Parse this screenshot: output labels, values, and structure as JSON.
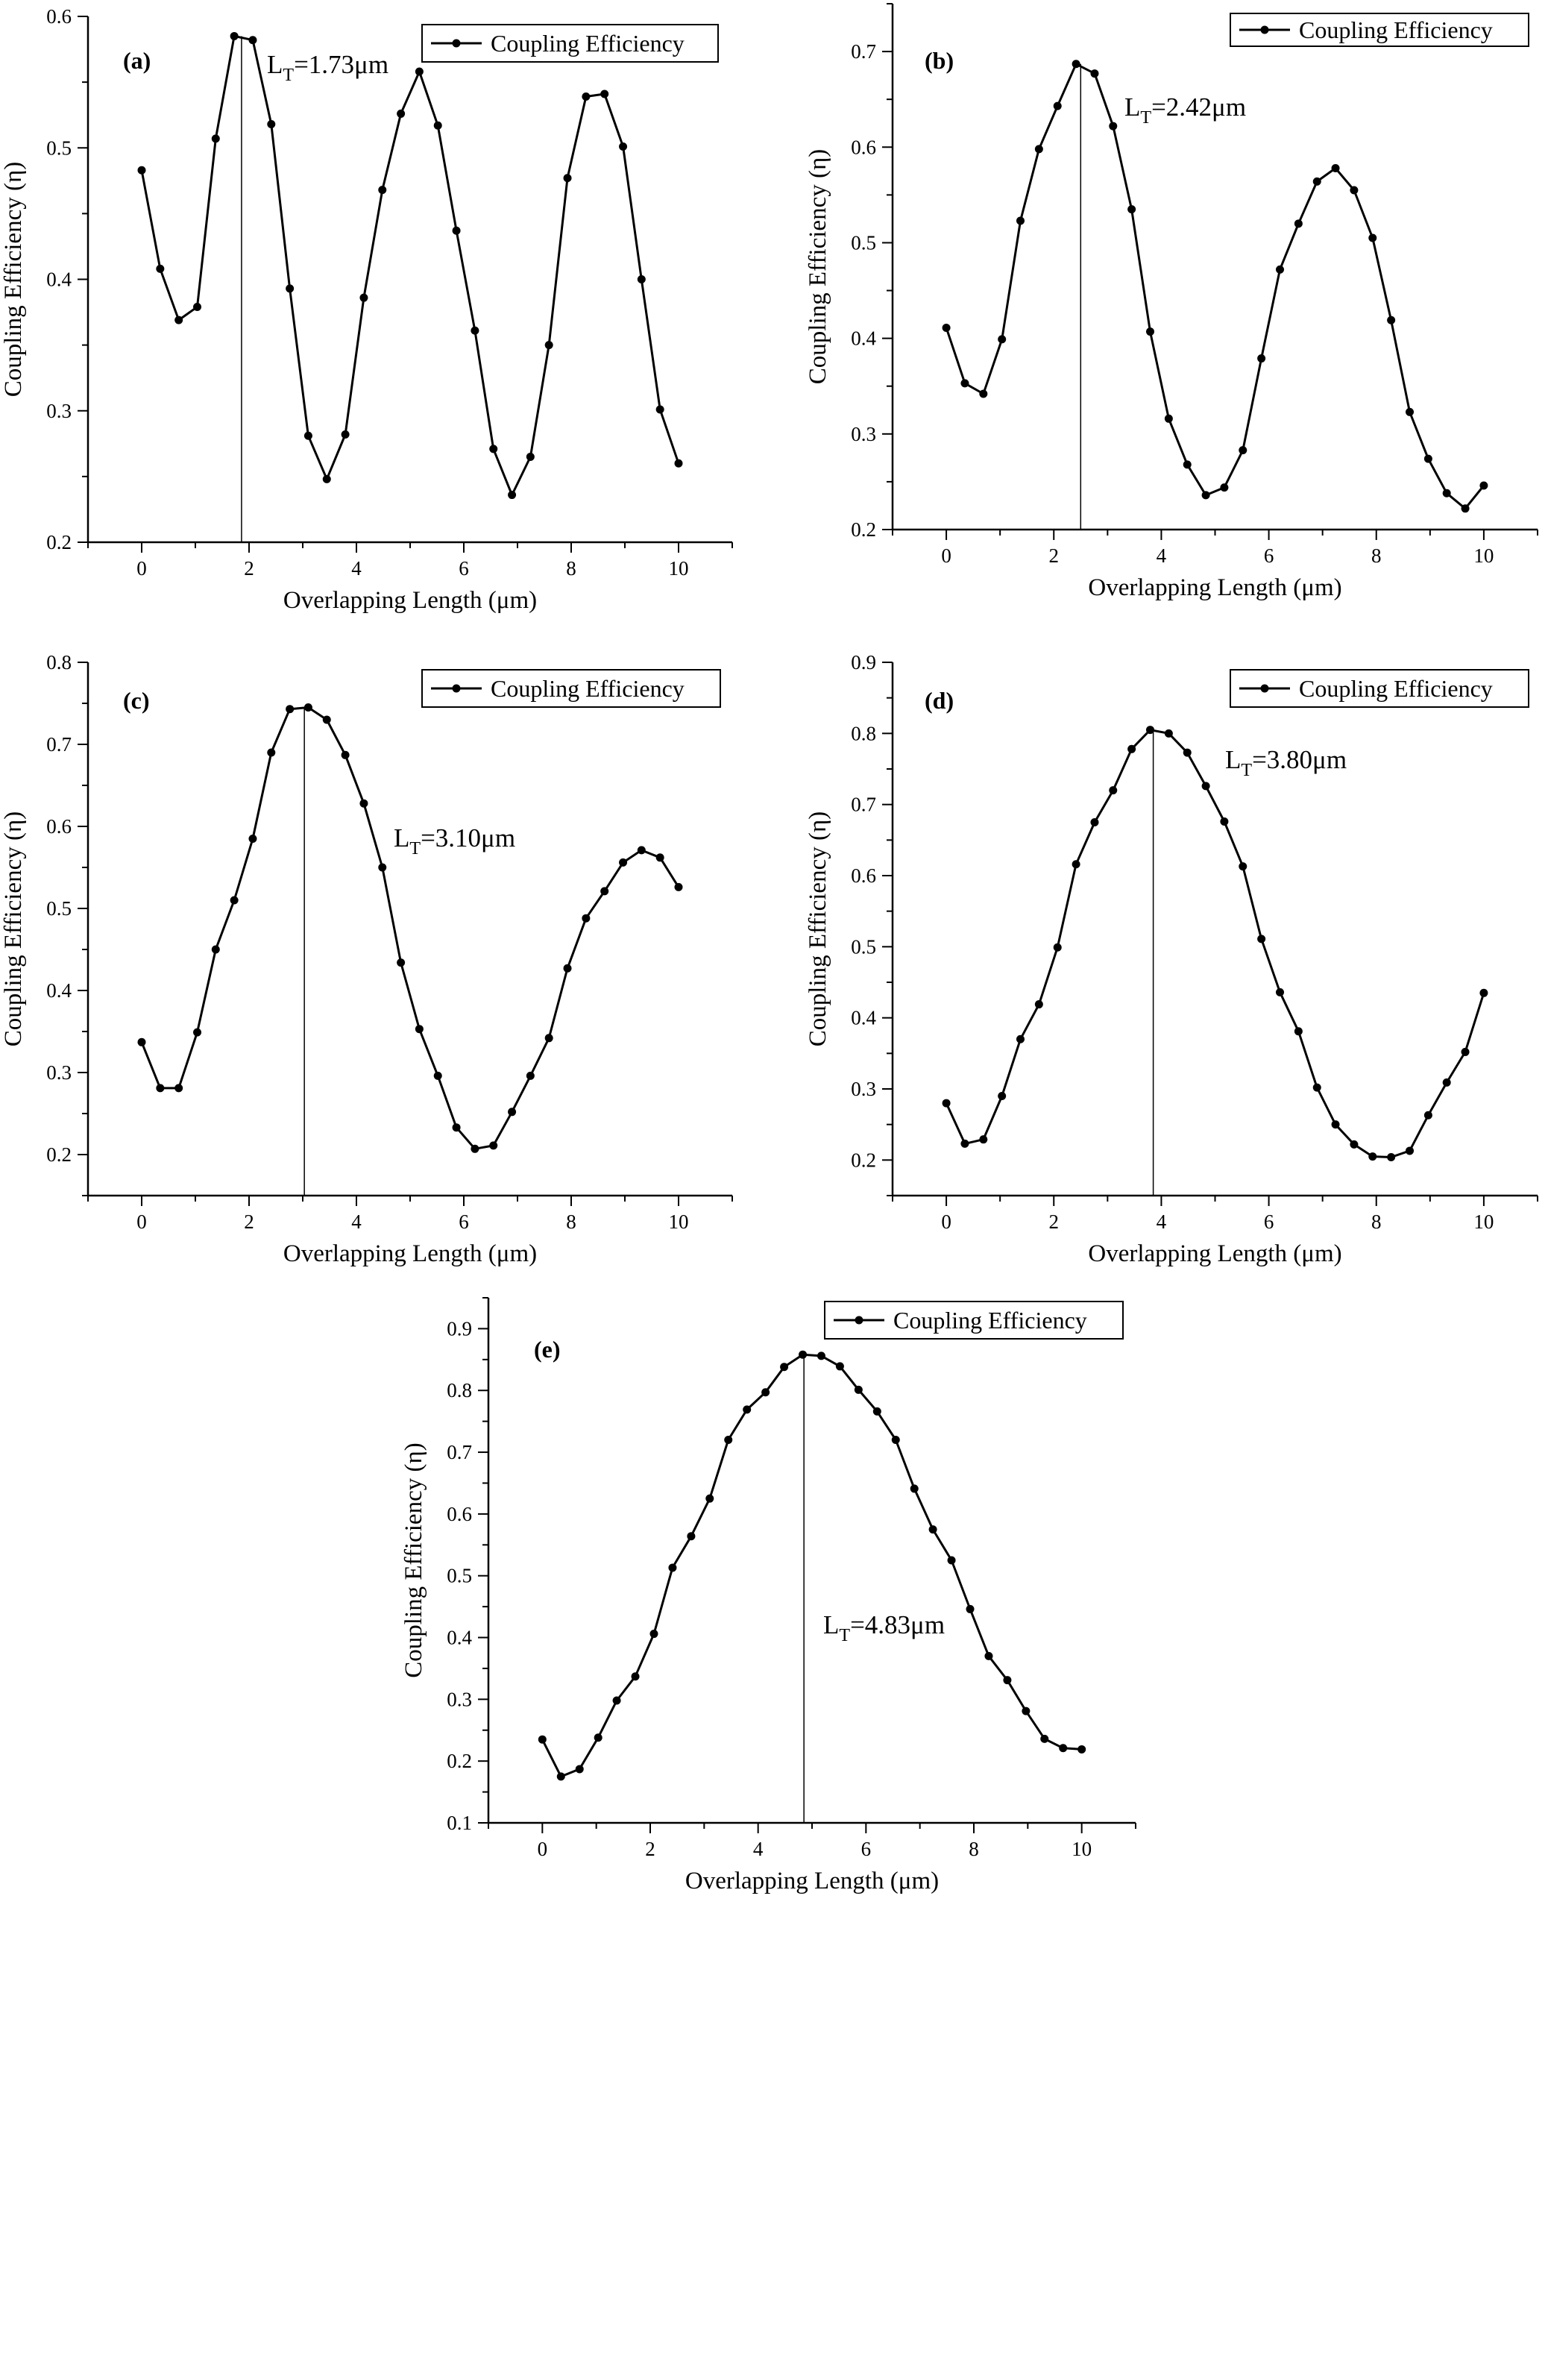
{
  "chart_data": [
    {
      "type": "line",
      "panel_label": "(a)",
      "xlabel": "Overlapping Length (μm)",
      "ylabel": "Coupling Efficiency (η)",
      "xlim": [
        -1,
        11
      ],
      "ylim": [
        0.2,
        0.6
      ],
      "xticks": [
        0,
        2,
        4,
        6,
        8,
        10
      ],
      "yticks": [
        0.2,
        0.3,
        0.4,
        0.5,
        0.6
      ],
      "series": [
        {
          "name": "Coupling Efficiency",
          "x": [
            0,
            0.345,
            0.69,
            1.035,
            1.379,
            1.724,
            2.069,
            2.414,
            2.759,
            3.103,
            3.448,
            3.793,
            4.138,
            4.483,
            4.828,
            5.172,
            5.517,
            5.862,
            6.207,
            6.552,
            6.897,
            7.241,
            7.586,
            7.931,
            8.276,
            8.621,
            8.966,
            9.31,
            9.655,
            10
          ],
          "values": [
            0.483,
            0.408,
            0.369,
            0.379,
            0.507,
            0.585,
            0.582,
            0.518,
            0.393,
            0.281,
            0.248,
            0.282,
            0.386,
            0.468,
            0.526,
            0.558,
            0.517,
            0.437,
            0.361,
            0.271,
            0.236,
            0.265,
            0.35,
            0.477,
            0.539,
            0.541,
            0.501,
            0.4,
            0.301,
            0.26
          ]
        }
      ],
      "marker_line_x": 1.86,
      "annotation": {
        "main": "L",
        "sub": "T",
        "rest": "=1.73μm"
      },
      "legend_position": "top-right"
    },
    {
      "type": "line",
      "panel_label": "(b)",
      "xlabel": "Overlapping Length (μm)",
      "ylabel": "Coupling Efficiency (η)",
      "xlim": [
        -1,
        11
      ],
      "ylim": [
        0.2,
        0.75
      ],
      "xticks": [
        0,
        2,
        4,
        6,
        8,
        10
      ],
      "yticks": [
        0.2,
        0.3,
        0.4,
        0.5,
        0.6,
        0.7
      ],
      "series": [
        {
          "name": "Coupling Efficiency",
          "x": [
            0,
            0.345,
            0.69,
            1.035,
            1.379,
            1.724,
            2.069,
            2.414,
            2.759,
            3.103,
            3.448,
            3.793,
            4.138,
            4.483,
            4.828,
            5.172,
            5.517,
            5.862,
            6.207,
            6.552,
            6.897,
            7.241,
            7.586,
            7.931,
            8.276,
            8.621,
            8.966,
            9.31,
            9.655,
            10
          ],
          "values": [
            0.411,
            0.353,
            0.342,
            0.399,
            0.523,
            0.598,
            0.643,
            0.687,
            0.677,
            0.622,
            0.535,
            0.407,
            0.316,
            0.268,
            0.236,
            0.244,
            0.283,
            0.379,
            0.472,
            0.52,
            0.564,
            0.578,
            0.555,
            0.505,
            0.419,
            0.323,
            0.274,
            0.238,
            0.222,
            0.246
          ]
        }
      ],
      "marker_line_x": 2.5,
      "annotation": {
        "main": "L",
        "sub": "T",
        "rest": "=2.42μm"
      },
      "legend_position": "top-right"
    },
    {
      "type": "line",
      "panel_label": "(c)",
      "xlabel": "Overlapping Length (μm)",
      "ylabel": "Coupling Efficiency (η)",
      "xlim": [
        -1,
        11
      ],
      "ylim": [
        0.15,
        0.8
      ],
      "xticks": [
        0,
        2,
        4,
        6,
        8,
        10
      ],
      "yticks": [
        0.2,
        0.3,
        0.4,
        0.5,
        0.6,
        0.7,
        0.8
      ],
      "series": [
        {
          "name": "Coupling Efficiency",
          "x": [
            0,
            0.345,
            0.69,
            1.035,
            1.379,
            1.724,
            2.069,
            2.414,
            2.759,
            3.103,
            3.448,
            3.793,
            4.138,
            4.483,
            4.828,
            5.172,
            5.517,
            5.862,
            6.207,
            6.552,
            6.897,
            7.241,
            7.586,
            7.931,
            8.276,
            8.621,
            8.966,
            9.31,
            9.655,
            10
          ],
          "values": [
            0.337,
            0.281,
            0.281,
            0.349,
            0.45,
            0.51,
            0.585,
            0.69,
            0.743,
            0.745,
            0.73,
            0.687,
            0.628,
            0.55,
            0.434,
            0.353,
            0.296,
            0.233,
            0.207,
            0.211,
            0.252,
            0.296,
            0.342,
            0.427,
            0.488,
            0.521,
            0.556,
            0.571,
            0.562,
            0.526
          ]
        }
      ],
      "marker_line_x": 3.03,
      "annotation": {
        "main": "L",
        "sub": "T",
        "rest": "=3.10μm"
      },
      "legend_position": "top-right"
    },
    {
      "type": "line",
      "panel_label": "(d)",
      "xlabel": "Overlapping Length (μm)",
      "ylabel": "Coupling Efficiency (η)",
      "xlim": [
        -1,
        11
      ],
      "ylim": [
        0.15,
        0.9
      ],
      "xticks": [
        0,
        2,
        4,
        6,
        8,
        10
      ],
      "yticks": [
        0.2,
        0.3,
        0.4,
        0.5,
        0.6,
        0.7,
        0.8,
        0.9
      ],
      "series": [
        {
          "name": "Coupling Efficiency",
          "x": [
            0,
            0.345,
            0.69,
            1.035,
            1.379,
            1.724,
            2.069,
            2.414,
            2.759,
            3.103,
            3.448,
            3.793,
            4.138,
            4.483,
            4.828,
            5.172,
            5.517,
            5.862,
            6.207,
            6.552,
            6.897,
            7.241,
            7.586,
            7.931,
            8.276,
            8.621,
            8.966,
            9.31,
            9.655,
            10
          ],
          "values": [
            0.28,
            0.223,
            0.229,
            0.29,
            0.37,
            0.419,
            0.499,
            0.616,
            0.675,
            0.72,
            0.778,
            0.805,
            0.8,
            0.773,
            0.726,
            0.676,
            0.613,
            0.511,
            0.436,
            0.381,
            0.302,
            0.25,
            0.222,
            0.205,
            0.204,
            0.213,
            0.263,
            0.309,
            0.352,
            0.435
          ]
        }
      ],
      "marker_line_x": 3.85,
      "annotation": {
        "main": "L",
        "sub": "T",
        "rest": "=3.80μm"
      },
      "legend_position": "top-right"
    },
    {
      "type": "line",
      "panel_label": "(e)",
      "xlabel": "Overlapping Length (μm)",
      "ylabel": "Coupling Efficiency (η)",
      "xlim": [
        -1,
        11
      ],
      "ylim": [
        0.1,
        0.95
      ],
      "xticks": [
        0,
        2,
        4,
        6,
        8,
        10
      ],
      "yticks": [
        0.1,
        0.2,
        0.3,
        0.4,
        0.5,
        0.6,
        0.7,
        0.8,
        0.9
      ],
      "series": [
        {
          "name": "Coupling Efficiency",
          "x": [
            0,
            0.345,
            0.69,
            1.035,
            1.379,
            1.724,
            2.069,
            2.414,
            2.759,
            3.103,
            3.448,
            3.793,
            4.138,
            4.483,
            4.828,
            5.172,
            5.517,
            5.862,
            6.207,
            6.552,
            6.897,
            7.241,
            7.586,
            7.931,
            8.276,
            8.621,
            8.966,
            9.31,
            9.655,
            10
          ],
          "values": [
            0.235,
            0.175,
            0.187,
            0.238,
            0.298,
            0.337,
            0.406,
            0.513,
            0.564,
            0.625,
            0.72,
            0.769,
            0.797,
            0.838,
            0.858,
            0.856,
            0.839,
            0.801,
            0.766,
            0.72,
            0.641,
            0.575,
            0.525,
            0.446,
            0.37,
            0.331,
            0.281,
            0.236,
            0.221,
            0.219
          ]
        }
      ],
      "marker_line_x": 4.85,
      "annotation": {
        "main": "L",
        "sub": "T",
        "rest": "=4.83μm"
      },
      "legend_position": "top-right"
    }
  ]
}
